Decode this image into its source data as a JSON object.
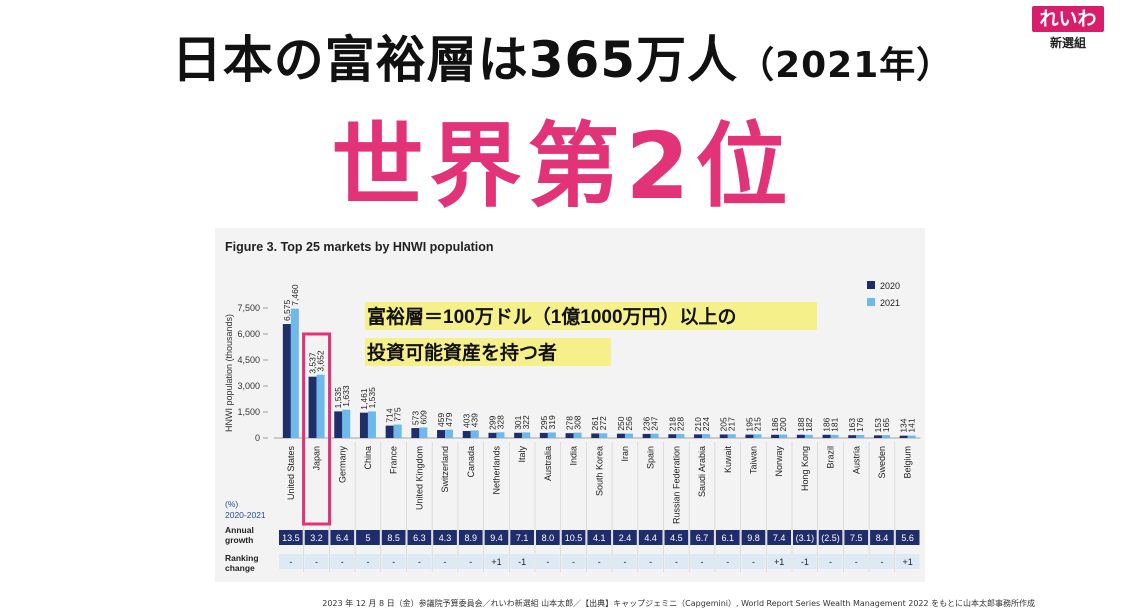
{
  "page": {
    "headline_main": "日本の富裕層は365万人",
    "headline_year": "（2021年）",
    "rank_text": "世界第2位",
    "logo_text": "れいわ",
    "logo_sub": "新選組",
    "footer": "2023 年 12 月 8 日（金）参議院予算委員会／れいわ新選組 山本太郎／【出典】キャップジェミニ（Capgemini）, World Report Series Wealth Management 2022 をもとに山本太郎事務所作成",
    "annotation_line1": "富裕層＝100万ドル（1億1000万円）以上の",
    "annotation_line2": "投資可能資産を持つ者"
  },
  "colors": {
    "series_2020": "#1f2d6b",
    "series_2021": "#6eb8ea",
    "accent_pink": "#e23379",
    "annotation_bg": "#f6f08a"
  },
  "chart_data": {
    "type": "bar",
    "title": "Figure 3. Top 25 markets by HNWI population",
    "ylabel": "HNWI population (thousands)",
    "ylim": [
      0,
      7500
    ],
    "yticks": [
      0,
      1500,
      3000,
      4500,
      6000,
      7500
    ],
    "ytick_labels": [
      "0",
      "1,500",
      "3,000",
      "4,500",
      "6,000",
      "7,500"
    ],
    "legend_position": "top-right",
    "grid": false,
    "categories": [
      "United States",
      "Japan",
      "Germany",
      "China",
      "France",
      "United Kingdom",
      "Switzerland",
      "Canada",
      "Netherlands",
      "Italy",
      "Australia",
      "India",
      "South Korea",
      "Iran",
      "Spain",
      "Russian Federation",
      "Saudi Arabia",
      "Kuwait",
      "Taiwan",
      "Norway",
      "Hong Kong",
      "Brazil",
      "Austria",
      "Sweden",
      "Belgium"
    ],
    "series": [
      {
        "name": "2020",
        "values": [
          6575,
          3537,
          1535,
          1461,
          714,
          573,
          459,
          403,
          299,
          301,
          295,
          278,
          261,
          250,
          236,
          218,
          210,
          205,
          195,
          186,
          188,
          186,
          163,
          153,
          134
        ],
        "labels": [
          "6,575",
          "3,537",
          "1,535",
          "1,461",
          "714",
          "573",
          "459",
          "403",
          "299",
          "301",
          "295",
          "278",
          "261",
          "250",
          "236",
          "218",
          "210",
          "205",
          "195",
          "186",
          "188",
          "186",
          "163",
          "153",
          "134"
        ]
      },
      {
        "name": "2021",
        "values": [
          7460,
          3652,
          1633,
          1535,
          775,
          609,
          479,
          439,
          328,
          322,
          319,
          308,
          272,
          256,
          247,
          228,
          224,
          217,
          215,
          200,
          182,
          181,
          176,
          165,
          141
        ],
        "labels": [
          "7,460",
          "3,652",
          "1,633",
          "1,535",
          "775",
          "609",
          "479",
          "439",
          "328",
          "322",
          "319",
          "308",
          "272",
          "256",
          "247",
          "228",
          "224",
          "217",
          "215",
          "200",
          "182",
          "181",
          "176",
          "165",
          "141"
        ]
      }
    ],
    "growth_header_line1": "(%)",
    "growth_header_line2": "2020-2021",
    "growth_row_label_line1": "Annual",
    "growth_row_label_line2": "growth",
    "annual_growth": [
      "13.5",
      "3.2",
      "6.4",
      "5",
      "8.5",
      "6.3",
      "4.3",
      "8.9",
      "9.4",
      "7.1",
      "8.0",
      "10.5",
      "4.1",
      "2.4",
      "4.4",
      "4.5",
      "6.7",
      "6.1",
      "9.8",
      "7.4",
      "(3.1)",
      "(2.5)",
      "7.5",
      "8.4",
      "5.6"
    ],
    "ranking_row_label_line1": "Ranking",
    "ranking_row_label_line2": "change",
    "ranking_change": [
      "-",
      "-",
      "-",
      "-",
      "-",
      "-",
      "-",
      "-",
      "+1",
      "-1",
      "-",
      "-",
      "-",
      "-",
      "-",
      "-",
      "-",
      "-",
      "-",
      "+1",
      "-1",
      "-",
      "-",
      "-",
      "+1"
    ],
    "highlight_category": "Japan"
  }
}
